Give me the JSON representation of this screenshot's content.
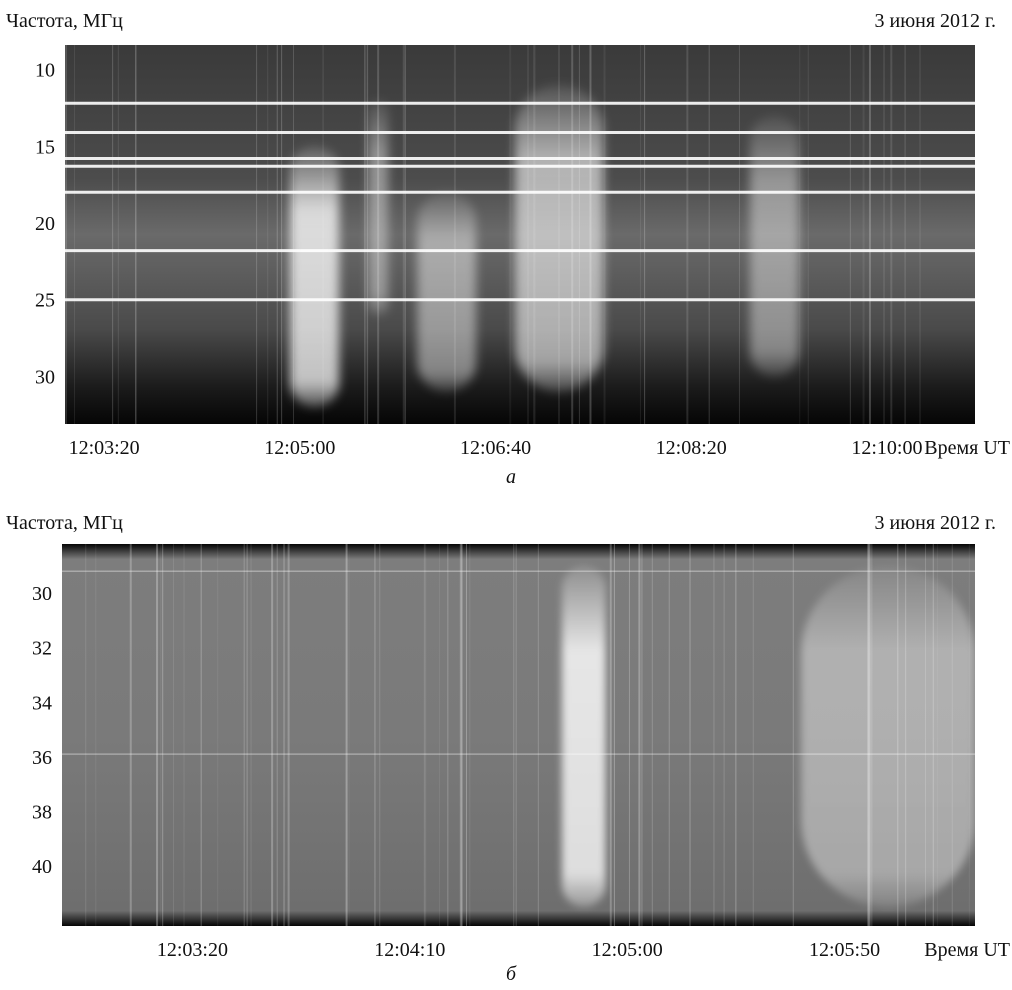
{
  "chart_data": [
    {
      "type": "heatmap",
      "panel_label": "а",
      "ylabel": "Частота, МГц",
      "xlabel": "Время UT",
      "date": "3 июня 2012 г.",
      "yticks": [
        10,
        15,
        20,
        25,
        30
      ],
      "ylim": [
        8.4,
        33.1
      ],
      "xticks": [
        "12:03:20",
        "12:05:00",
        "12:06:40",
        "12:08:20",
        "12:10:00"
      ],
      "xlim": [
        "12:03:00",
        "12:10:45"
      ],
      "colormap": "grayscale",
      "bursts": [
        {
          "time_start": "12:04:55",
          "time_end": "12:05:20",
          "freq_low": 15,
          "freq_high": 32,
          "intensity": 0.85
        },
        {
          "time_start": "12:05:35",
          "time_end": "12:05:45",
          "freq_low": 12,
          "freq_high": 26,
          "intensity": 0.45
        },
        {
          "time_start": "12:06:00",
          "time_end": "12:06:30",
          "freq_low": 18,
          "freq_high": 31,
          "intensity": 0.5
        },
        {
          "time_start": "12:06:50",
          "time_end": "12:07:35",
          "freq_low": 11,
          "freq_high": 31,
          "intensity": 0.65
        },
        {
          "time_start": "12:08:50",
          "time_end": "12:09:15",
          "freq_low": 13,
          "freq_high": 30,
          "intensity": 0.45
        }
      ],
      "bright_lines_mhz": [
        12.2,
        14.1,
        15.8,
        16.3,
        18.0,
        21.8,
        25.0
      ]
    },
    {
      "type": "heatmap",
      "panel_label": "б",
      "ylabel": "Частота, МГц",
      "xlabel": "Время UT",
      "date": "3 июня 2012 г.",
      "yticks": [
        30,
        32,
        34,
        36,
        38,
        40
      ],
      "ylim": [
        28.2,
        42.2
      ],
      "xticks": [
        "12:03:20",
        "12:04:10",
        "12:05:00",
        "12:05:50"
      ],
      "xlim": [
        "12:02:50",
        "12:06:20"
      ],
      "colormap": "grayscale",
      "bursts": [
        {
          "time_start": "12:04:45",
          "time_end": "12:04:55",
          "freq_low": 29,
          "freq_high": 41.5,
          "intensity": 0.9
        },
        {
          "time_start": "12:05:40",
          "time_end": "12:06:20",
          "freq_low": 29,
          "freq_high": 41.5,
          "intensity": 0.45
        }
      ],
      "bright_lines_mhz": [
        29.2,
        35.9
      ]
    }
  ]
}
